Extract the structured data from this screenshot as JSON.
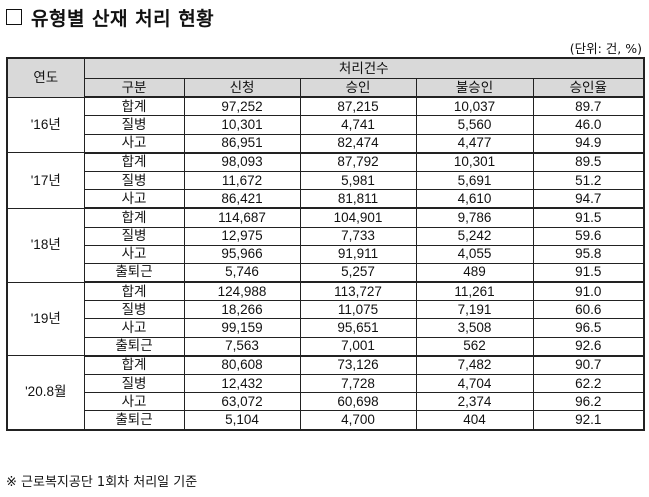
{
  "title": "유형별 산재 처리 현황",
  "unit": "(단위: 건, %)",
  "table": {
    "header_year": "연도",
    "header_group": "처리건수",
    "columns": [
      "구분",
      "신청",
      "승인",
      "불승인",
      "승인율"
    ],
    "groups": [
      {
        "year": "'16년",
        "rows": [
          [
            "합계",
            "97,252",
            "87,215",
            "10,037",
            "89.7"
          ],
          [
            "질병",
            "10,301",
            "4,741",
            "5,560",
            "46.0"
          ],
          [
            "사고",
            "86,951",
            "82,474",
            "4,477",
            "94.9"
          ]
        ]
      },
      {
        "year": "'17년",
        "rows": [
          [
            "합계",
            "98,093",
            "87,792",
            "10,301",
            "89.5"
          ],
          [
            "질병",
            "11,672",
            "5,981",
            "5,691",
            "51.2"
          ],
          [
            "사고",
            "86,421",
            "81,811",
            "4,610",
            "94.7"
          ]
        ]
      },
      {
        "year": "'18년",
        "rows": [
          [
            "합계",
            "114,687",
            "104,901",
            "9,786",
            "91.5"
          ],
          [
            "질병",
            "12,975",
            "7,733",
            "5,242",
            "59.6"
          ],
          [
            "사고",
            "95,966",
            "91,911",
            "4,055",
            "95.8"
          ],
          [
            "출퇴근",
            "5,746",
            "5,257",
            "489",
            "91.5"
          ]
        ]
      },
      {
        "year": "'19년",
        "rows": [
          [
            "합계",
            "124,988",
            "113,727",
            "11,261",
            "91.0"
          ],
          [
            "질병",
            "18,266",
            "11,075",
            "7,191",
            "60.6"
          ],
          [
            "사고",
            "99,159",
            "95,651",
            "3,508",
            "96.5"
          ],
          [
            "출퇴근",
            "7,563",
            "7,001",
            "562",
            "92.6"
          ]
        ]
      },
      {
        "year": "'20.8월",
        "rows": [
          [
            "합계",
            "80,608",
            "73,126",
            "7,482",
            "90.7"
          ],
          [
            "질병",
            "12,432",
            "7,728",
            "4,704",
            "62.2"
          ],
          [
            "사고",
            "63,072",
            "60,698",
            "2,374",
            "96.2"
          ],
          [
            "출퇴근",
            "5,104",
            "4,700",
            "404",
            "92.1"
          ]
        ]
      }
    ]
  },
  "footnote": "※ 근로복지공단 1회차 처리일 기준"
}
